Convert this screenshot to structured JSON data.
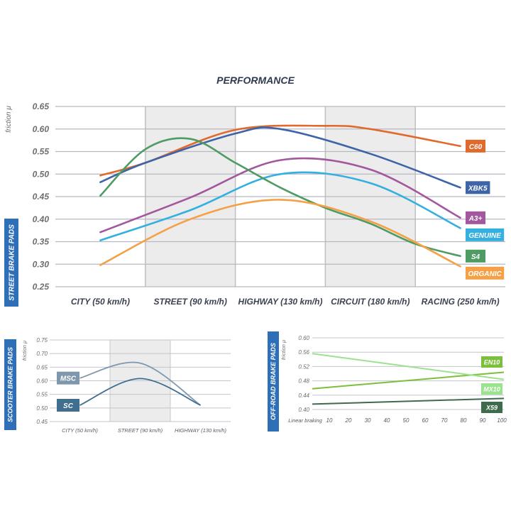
{
  "title": "PERFORMANCE",
  "chart_data": [
    {
      "type": "line",
      "side_label": "STREET BRAKE PADS",
      "ylabel": "friction μ",
      "ylim": [
        0.25,
        0.65
      ],
      "yticks": [
        "0.65",
        "0.60",
        "0.55",
        "0.50",
        "0.45",
        "0.40",
        "0.35",
        "0.30",
        "0.25"
      ],
      "categories": [
        "CITY (50 km/h)",
        "STREET (90 km/h)",
        "HIGHWAY (130 km/h)",
        "CIRCUIT (180 km/h)",
        "RACING (250 km/h)"
      ],
      "shaded_bands": [
        "STREET (90 km/h)",
        "CIRCUIT (180 km/h)"
      ],
      "series": [
        {
          "name": "C60",
          "color": "#e06a2c",
          "x": [
            0.5,
            1,
            2,
            3,
            3.5,
            4.5
          ],
          "values": [
            0.497,
            0.525,
            0.598,
            0.607,
            0.6,
            0.562
          ]
        },
        {
          "name": "XBK5",
          "color": "#3e64a8",
          "x": [
            0.5,
            1,
            2,
            2.5,
            3.5,
            4.5
          ],
          "values": [
            0.482,
            0.525,
            0.59,
            0.6,
            0.545,
            0.47
          ]
        },
        {
          "name": "A3+",
          "color": "#a2579e",
          "x": [
            0.5,
            1.5,
            2.5,
            3.5,
            4.5
          ],
          "values": [
            0.371,
            0.448,
            0.531,
            0.51,
            0.403
          ]
        },
        {
          "name": "GENUINE",
          "color": "#33b0e0",
          "x": [
            0.5,
            1.5,
            2.5,
            3.5,
            4.5
          ],
          "values": [
            0.353,
            0.42,
            0.5,
            0.48,
            0.38
          ]
        },
        {
          "name": "S4",
          "color": "#4e9b63",
          "x": [
            0.5,
            1,
            1.5,
            2,
            2.5,
            3,
            3.5,
            4,
            4.5
          ],
          "values": [
            0.452,
            0.555,
            0.578,
            0.525,
            0.47,
            0.425,
            0.39,
            0.345,
            0.318
          ]
        },
        {
          "name": "ORGANIC",
          "color": "#f5a045",
          "x": [
            0.5,
            1.5,
            2.5,
            3.5,
            4.5
          ],
          "values": [
            0.298,
            0.4,
            0.443,
            0.395,
            0.295
          ]
        }
      ]
    },
    {
      "type": "line",
      "side_label": "SCOOTER BRAKE PADS",
      "ylabel": "friction μ",
      "ylim": [
        0.45,
        0.75
      ],
      "yticks": [
        "0.75",
        "0.70",
        "0.65",
        "0.60",
        "0.55",
        "0.50",
        "0.45"
      ],
      "categories": [
        "CITY (50 km/h)",
        "STREET (90 km/h)",
        "HIGHWAY (130 km/h)"
      ],
      "shaded_bands": [
        "STREET (90 km/h)"
      ],
      "series": [
        {
          "name": "MSC",
          "color": "#7f97ad",
          "x": [
            0.5,
            1.5,
            2.5
          ],
          "values": [
            0.61,
            0.665,
            0.51
          ]
        },
        {
          "name": "SC",
          "color": "#3f6e8e",
          "x": [
            0.5,
            1.5,
            2.5
          ],
          "values": [
            0.51,
            0.608,
            0.51
          ]
        }
      ]
    },
    {
      "type": "line",
      "side_label": "OFF-ROAD BRAKE PADS",
      "ylabel": "friction μ",
      "xlabel": "Linear braking",
      "ylim": [
        0.4,
        0.6
      ],
      "yticks": [
        "0.60",
        "0.56",
        "0.52",
        "0.48",
        "0.44",
        "0.40"
      ],
      "xticks": [
        "10",
        "20",
        "30",
        "40",
        "50",
        "60",
        "70",
        "80",
        "90",
        "100"
      ],
      "series": [
        {
          "name": "EN10",
          "color": "#7bbf3c",
          "x": [
            0,
            100
          ],
          "values": [
            0.458,
            0.504
          ]
        },
        {
          "name": "MX10",
          "color": "#9be28f",
          "x": [
            0,
            100
          ],
          "values": [
            0.556,
            0.484
          ]
        },
        {
          "name": "X59",
          "color": "#3d6b4c",
          "x": [
            0,
            100
          ],
          "values": [
            0.415,
            0.431
          ]
        }
      ]
    }
  ]
}
